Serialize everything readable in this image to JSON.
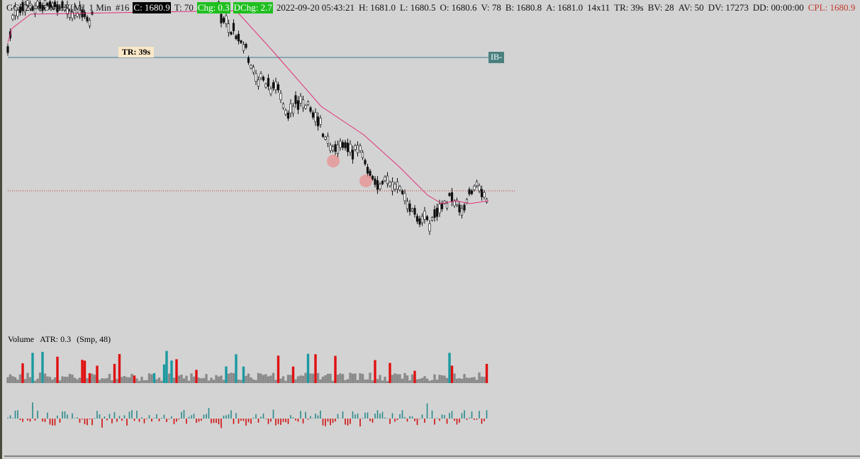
{
  "header": {
    "symbol": "GCZ22-COMEX[M]",
    "interval": "1 Min",
    "number": "#16",
    "close": "C: 1680.9",
    "ticks": "T: 70",
    "change": "Chg: 0.3",
    "day_change": "DChg: 2.7",
    "timestamp": "2022-09-20 05:43:21",
    "high": "H: 1681.0",
    "low": "L: 1680.5",
    "open": "O: 1680.6",
    "volume": "V: 78",
    "bid": "B: 1680.8",
    "ask": "A: 1681.0",
    "size": "14x11",
    "time_remaining": "TR: 39s",
    "bid_volume": "BV: 28",
    "ask_volume": "AV: 50",
    "day_volume": "DV: 17273",
    "duration": "DD: 00:00:00",
    "current_price_line": "CPL: 1680.9"
  },
  "chart": {
    "timer_label": "TR: 39s",
    "ib_label": "IB-"
  },
  "volume_panel": {
    "title": "Volume",
    "atr": "ATR: 0.3",
    "smoothing": "(Smp, 48)"
  }
}
